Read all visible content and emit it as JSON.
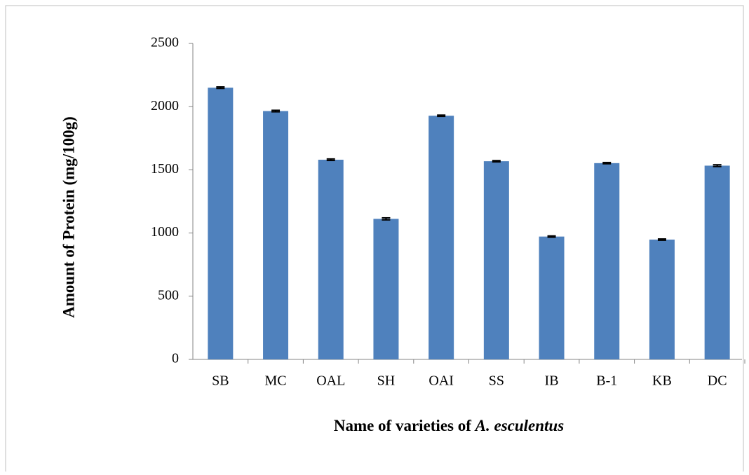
{
  "chart_data": {
    "type": "bar",
    "ylabel": "Amount of Protein (mg/100g)",
    "xlabel": [
      {
        "text": "Name of varieties of "
      },
      {
        "text": "A. esculentus",
        "italic": true
      }
    ],
    "categories": [
      "SB",
      "MC",
      "OAL",
      "SH",
      "OAI",
      "SS",
      "IB",
      "B-1",
      "KB",
      "DC"
    ],
    "values": [
      2150,
      1965,
      1580,
      1112,
      1928,
      1568,
      972,
      1553,
      948,
      1533
    ],
    "errors": [
      6,
      6,
      6,
      8,
      5,
      5,
      5,
      5,
      5,
      7
    ],
    "color": "#4f81bd",
    "ylim": [
      0,
      2500
    ],
    "yticks": [
      0,
      500,
      1000,
      1500,
      2000,
      2500
    ],
    "grid": false
  }
}
